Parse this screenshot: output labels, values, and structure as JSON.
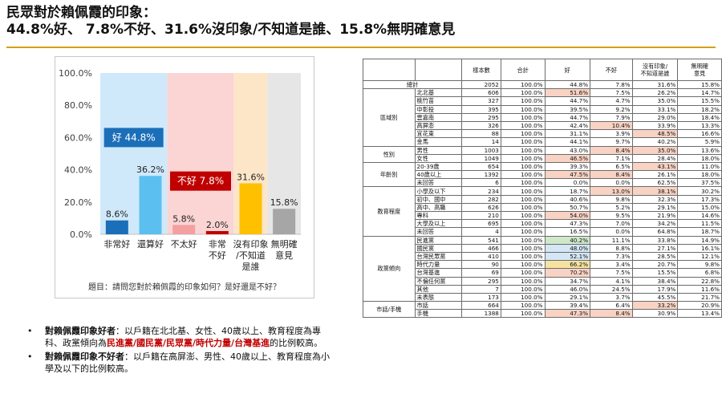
{
  "header": {
    "title_line1": "民眾對於賴佩霞的印象：",
    "title_line2": "44.8%好、 7.8%不好、31.6%沒印象/不知道是誰、15.8%無明確意見"
  },
  "chart_data": {
    "type": "bar",
    "categories": [
      "非常好",
      "還算好",
      "不太好",
      "非常不好",
      "沒有印象/不知道是誰",
      "無明確意見"
    ],
    "category_lines": [
      [
        "非常好"
      ],
      [
        "還算好"
      ],
      [
        "不太好"
      ],
      [
        "非常",
        "不好"
      ],
      [
        "沒有印象",
        "/不知道",
        "是誰"
      ],
      [
        "無明確",
        "意見"
      ]
    ],
    "values": [
      8.6,
      36.2,
      5.8,
      2.0,
      31.6,
      15.8
    ],
    "value_labels": [
      "8.6%",
      "36.2%",
      "5.8%",
      "2.0%",
      "31.6%",
      "15.8%"
    ],
    "bar_colors": [
      "#1b6fb8",
      "#5bc0f0",
      "#f4a0a0",
      "#c00000",
      "#ffc000",
      "#a6a6a6"
    ],
    "group_backgrounds": [
      {
        "from": 0,
        "to": 1,
        "color": "#cfe9fb"
      },
      {
        "from": 2,
        "to": 3,
        "color": "#fbd4d4"
      },
      {
        "from": 4,
        "to": 4,
        "color": "#fde6c8"
      },
      {
        "from": 5,
        "to": 5,
        "color": "#e6e6e6"
      }
    ],
    "yticks": [
      "0.0%",
      "20.0%",
      "40.0%",
      "60.0%",
      "80.0%",
      "100.0%"
    ],
    "ylim": [
      0,
      100
    ],
    "grid": false,
    "annotations": {
      "good": {
        "label": "好 44.8%",
        "color": "#1b6fb8"
      },
      "bad": {
        "label": "不好 7.8%",
        "color": "#c00000"
      }
    },
    "question": "題目：請問您對於賴佩霞的印象如何？是好還是不好？"
  },
  "bullets": [
    {
      "key": "對賴佩霞印象好者",
      "text_before": "：以戶籍在北北基、女性、40歲以上、教育程度為專科、政黨傾向為",
      "highlight": "民進黨/國民黨/民眾黨/時代力量/台灣基進",
      "text_after": "的比例較高。"
    },
    {
      "key": "對賴佩霞印象不好者",
      "text_before": "：以戶籍在高屏澎、男性、40歲以上、教育程度為小學及以下的比例較高。",
      "highlight": "",
      "text_after": ""
    }
  ],
  "table": {
    "headers": [
      "",
      "",
      "樣本數",
      "合計",
      "好",
      "不好",
      "沒有印象/不知道是誰",
      "無明確意見"
    ],
    "header_lines": [
      [
        ""
      ],
      [
        ""
      ],
      [
        "樣本數"
      ],
      [
        "合計"
      ],
      [
        "好"
      ],
      [
        "不好"
      ],
      [
        "沒有印象/",
        "不知道是誰"
      ],
      [
        "無明確",
        "意見"
      ]
    ],
    "total": {
      "label": "總計",
      "values": [
        "2052",
        "100.0%",
        "44.8%",
        "7.8%",
        "31.6%",
        "15.8%"
      ]
    },
    "groups": [
      {
        "name": "區域別",
        "rows": [
          {
            "label": "北北基",
            "values": [
              "606",
              "100.0%",
              "51.6%",
              "7.5%",
              "26.2%",
              "14.7%"
            ],
            "hl": {
              "2": "red"
            }
          },
          {
            "label": "桃竹苗",
            "values": [
              "327",
              "100.0%",
              "44.7%",
              "4.7%",
              "35.0%",
              "15.5%"
            ],
            "hl": {}
          },
          {
            "label": "中彰投",
            "values": [
              "395",
              "100.0%",
              "39.5%",
              "9.2%",
              "33.1%",
              "18.2%"
            ],
            "hl": {}
          },
          {
            "label": "雲嘉南",
            "values": [
              "295",
              "100.0%",
              "44.7%",
              "7.9%",
              "29.0%",
              "18.4%"
            ],
            "hl": {}
          },
          {
            "label": "高屏澎",
            "values": [
              "326",
              "100.0%",
              "42.4%",
              "10.4%",
              "33.9%",
              "13.3%"
            ],
            "hl": {
              "3": "red"
            }
          },
          {
            "label": "宜花東",
            "values": [
              "88",
              "100.0%",
              "31.1%",
              "3.9%",
              "48.5%",
              "16.6%"
            ],
            "hl": {
              "4": "red"
            }
          },
          {
            "label": "金馬",
            "values": [
              "14",
              "100.0%",
              "44.1%",
              "9.7%",
              "40.2%",
              "5.9%"
            ],
            "hl": {}
          }
        ]
      },
      {
        "name": "性別",
        "rows": [
          {
            "label": "男性",
            "values": [
              "1003",
              "100.0%",
              "43.0%",
              "8.4%",
              "35.0%",
              "13.6%"
            ],
            "hl": {
              "3": "red",
              "4": "red"
            }
          },
          {
            "label": "女性",
            "values": [
              "1049",
              "100.0%",
              "46.5%",
              "7.1%",
              "28.4%",
              "18.0%"
            ],
            "hl": {
              "2": "red"
            }
          }
        ]
      },
      {
        "name": "年齡別",
        "rows": [
          {
            "label": "20-39歲",
            "values": [
              "654",
              "100.0%",
              "39.3%",
              "6.5%",
              "43.1%",
              "11.0%"
            ],
            "hl": {
              "4": "red"
            }
          },
          {
            "label": "40歲以上",
            "values": [
              "1392",
              "100.0%",
              "47.5%",
              "8.4%",
              "26.1%",
              "18.0%"
            ],
            "hl": {
              "2": "red",
              "3": "red"
            }
          },
          {
            "label": "未回答",
            "values": [
              "6",
              "100.0%",
              "0.0%",
              "0.0%",
              "62.5%",
              "37.5%"
            ],
            "hl": {}
          }
        ]
      },
      {
        "name": "教育程度",
        "rows": [
          {
            "label": "小學及以下",
            "values": [
              "234",
              "100.0%",
              "18.7%",
              "13.0%",
              "38.1%",
              "30.2%"
            ],
            "hl": {
              "3": "red",
              "4": "red"
            }
          },
          {
            "label": "初中、國中",
            "values": [
              "282",
              "100.0%",
              "40.6%",
              "9.8%",
              "32.3%",
              "17.3%"
            ],
            "hl": {}
          },
          {
            "label": "高中、高職",
            "values": [
              "626",
              "100.0%",
              "50.7%",
              "5.2%",
              "29.1%",
              "15.0%"
            ],
            "hl": {}
          },
          {
            "label": "專科",
            "values": [
              "210",
              "100.0%",
              "54.0%",
              "9.5%",
              "21.9%",
              "14.6%"
            ],
            "hl": {
              "2": "red"
            }
          },
          {
            "label": "大學及以上",
            "values": [
              "695",
              "100.0%",
              "47.3%",
              "7.0%",
              "34.2%",
              "11.5%"
            ],
            "hl": {}
          },
          {
            "label": "未回答",
            "values": [
              "4",
              "100.0%",
              "16.5%",
              "0.0%",
              "64.8%",
              "18.7%"
            ],
            "hl": {}
          }
        ]
      },
      {
        "name": "政黨傾向",
        "rows": [
          {
            "label": "民進黨",
            "values": [
              "541",
              "100.0%",
              "40.2%",
              "11.1%",
              "33.8%",
              "14.9%"
            ],
            "hl": {
              "2": "green"
            }
          },
          {
            "label": "國民黨",
            "values": [
              "466",
              "100.0%",
              "48.0%",
              "8.8%",
              "27.1%",
              "16.1%"
            ],
            "hl": {
              "2": "blue"
            }
          },
          {
            "label": "台灣民眾黨",
            "values": [
              "410",
              "100.0%",
              "52.1%",
              "7.3%",
              "28.5%",
              "12.1%"
            ],
            "hl": {
              "2": "blue"
            }
          },
          {
            "label": "時代力量",
            "values": [
              "90",
              "100.0%",
              "66.2%",
              "3.4%",
              "20.7%",
              "9.8%"
            ],
            "hl": {
              "2": "yellow"
            }
          },
          {
            "label": "台灣基進",
            "values": [
              "69",
              "100.0%",
              "70.2%",
              "7.5%",
              "15.5%",
              "6.8%"
            ],
            "hl": {
              "2": "red"
            }
          },
          {
            "label": "不偏任何黨",
            "values": [
              "295",
              "100.0%",
              "34.7%",
              "4.1%",
              "38.4%",
              "22.8%"
            ],
            "hl": {}
          },
          {
            "label": "其他",
            "values": [
              "7",
              "100.0%",
              "46.0%",
              "24.5%",
              "17.9%",
              "11.6%"
            ],
            "hl": {}
          },
          {
            "label": "未表態",
            "values": [
              "173",
              "100.0%",
              "29.1%",
              "3.7%",
              "45.5%",
              "21.7%"
            ],
            "hl": {}
          }
        ]
      },
      {
        "name": "市話/手機",
        "rows": [
          {
            "label": "市話",
            "values": [
              "664",
              "100.0%",
              "39.4%",
              "6.4%",
              "33.2%",
              "20.9%"
            ],
            "hl": {
              "4": "red"
            }
          },
          {
            "label": "手機",
            "values": [
              "1388",
              "100.0%",
              "47.3%",
              "8.4%",
              "30.9%",
              "13.4%"
            ],
            "hl": {
              "2": "red",
              "3": "red"
            }
          }
        ]
      }
    ]
  }
}
